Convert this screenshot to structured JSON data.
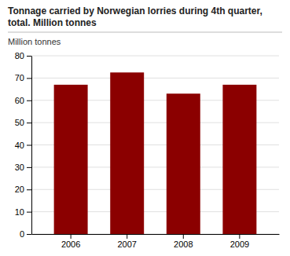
{
  "chart_data": {
    "type": "bar",
    "title": "Tonnage carried by Norwegian lorries during 4th quarter,\ntotal. Million tonnes",
    "ylabel": "Million tonnes",
    "categories": [
      "2006",
      "2007",
      "2008",
      "2009"
    ],
    "values": [
      67.0,
      72.5,
      63.0,
      67.0
    ],
    "color": "#8B0000",
    "ylim": [
      0,
      80
    ],
    "yticks": [
      0,
      10,
      20,
      30,
      40,
      50,
      60,
      70,
      80
    ],
    "grid": true
  }
}
